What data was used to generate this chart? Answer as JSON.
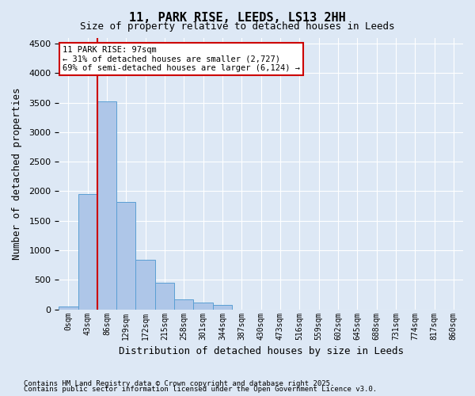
{
  "title": "11, PARK RISE, LEEDS, LS13 2HH",
  "subtitle": "Size of property relative to detached houses in Leeds",
  "xlabel": "Distribution of detached houses by size in Leeds",
  "ylabel": "Number of detached properties",
  "bar_color": "#aec6e8",
  "bar_edge_color": "#5a9fd4",
  "background_color": "#dde8f5",
  "grid_color": "#ffffff",
  "annotation_text": "11 PARK RISE: 97sqm\n← 31% of detached houses are smaller (2,727)\n69% of semi-detached houses are larger (6,124) →",
  "vline_color": "#cc0000",
  "annotation_box_color": "#cc0000",
  "ylim": [
    0,
    4600
  ],
  "yticks": [
    0,
    500,
    1000,
    1500,
    2000,
    2500,
    3000,
    3500,
    4000,
    4500
  ],
  "bin_labels": [
    "0sqm",
    "43sqm",
    "86sqm",
    "129sqm",
    "172sqm",
    "215sqm",
    "258sqm",
    "301sqm",
    "344sqm",
    "387sqm",
    "430sqm",
    "473sqm",
    "516sqm",
    "559sqm",
    "602sqm",
    "645sqm",
    "688sqm",
    "731sqm",
    "774sqm",
    "817sqm",
    "860sqm"
  ],
  "bar_heights": [
    50,
    1950,
    3520,
    1820,
    840,
    450,
    175,
    110,
    75,
    0,
    0,
    0,
    0,
    0,
    0,
    0,
    0,
    0,
    0,
    0,
    0
  ],
  "vline_x": 1.5,
  "footnote1": "Contains HM Land Registry data © Crown copyright and database right 2025.",
  "footnote2": "Contains public sector information licensed under the Open Government Licence v3.0."
}
